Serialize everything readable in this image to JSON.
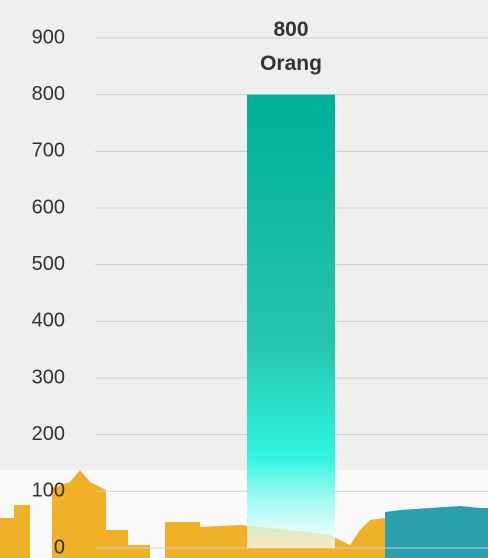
{
  "chart_data": {
    "type": "bar",
    "categories": [
      null
    ],
    "values": [
      800
    ],
    "value_labels": [
      "800\nOrang"
    ],
    "color": "#00b09b",
    "ylim": [
      0,
      900
    ],
    "yticks": [
      0,
      100,
      200,
      300,
      400,
      500,
      600,
      700,
      800,
      900
    ],
    "grid": true
  }
}
